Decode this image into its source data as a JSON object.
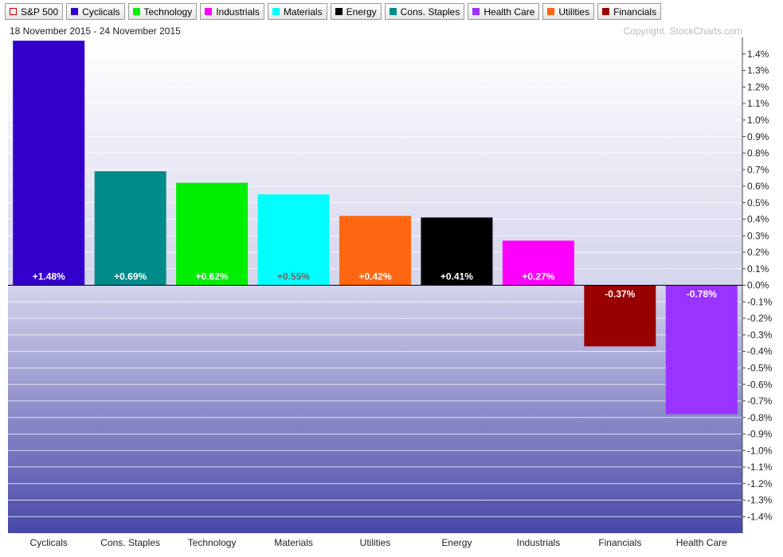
{
  "chart_data": {
    "type": "bar",
    "legend": [
      {
        "name": "S&P 500",
        "color": "#cc0000",
        "hollow": true
      },
      {
        "name": "Cyclicals",
        "color": "#3300cc"
      },
      {
        "name": "Technology",
        "color": "#00ee00"
      },
      {
        "name": "Industrials",
        "color": "#ff00ff"
      },
      {
        "name": "Materials",
        "color": "#00ffff"
      },
      {
        "name": "Energy",
        "color": "#000000"
      },
      {
        "name": "Cons. Staples",
        "color": "#008b8b"
      },
      {
        "name": "Health Care",
        "color": "#9933ff"
      },
      {
        "name": "Utilities",
        "color": "#ff6611"
      },
      {
        "name": "Financials",
        "color": "#990000"
      }
    ],
    "subtitle": "18 November 2015 - 24 November 2015",
    "copyright": "Copyright, StockCharts.com",
    "categories": [
      "Cyclicals",
      "Cons. Staples",
      "Technology",
      "Materials",
      "Utilities",
      "Energy",
      "Industrials",
      "Financials",
      "Health Care"
    ],
    "values": [
      1.48,
      0.69,
      0.62,
      0.55,
      0.42,
      0.41,
      0.27,
      -0.37,
      -0.78
    ],
    "value_labels": [
      "+1.48%",
      "+0.69%",
      "+0.62%",
      "+0.55%",
      "+0.42%",
      "+0.41%",
      "+0.27%",
      "-0.37%",
      "-0.78%"
    ],
    "colors": [
      "#3300cc",
      "#008b8b",
      "#00ee00",
      "#00ffff",
      "#ff6611",
      "#000000",
      "#ff00ff",
      "#990000",
      "#9933ff"
    ],
    "ylim": [
      -1.5,
      1.5
    ],
    "yticks": [
      {
        "value": 1.4,
        "label": "1.4%"
      },
      {
        "value": 1.3,
        "label": "1.3%"
      },
      {
        "value": 1.2,
        "label": "1.2%"
      },
      {
        "value": 1.1,
        "label": "1.1%"
      },
      {
        "value": 1.0,
        "label": "1.0%"
      },
      {
        "value": 0.9,
        "label": "0.9%"
      },
      {
        "value": 0.8,
        "label": "0.8%"
      },
      {
        "value": 0.7,
        "label": "0.7%"
      },
      {
        "value": 0.6,
        "label": "0.6%"
      },
      {
        "value": 0.5,
        "label": "0.5%"
      },
      {
        "value": 0.4,
        "label": "0.4%"
      },
      {
        "value": 0.3,
        "label": "0.3%"
      },
      {
        "value": 0.2,
        "label": "0.2%"
      },
      {
        "value": 0.1,
        "label": "0.1%"
      },
      {
        "value": 0,
        "label": "0.0%"
      },
      {
        "value": -0.1,
        "label": "-0.1%"
      },
      {
        "value": -0.2,
        "label": "-0.2%"
      },
      {
        "value": -0.3,
        "label": "-0.3%"
      },
      {
        "value": -0.4,
        "label": "-0.4%"
      },
      {
        "value": -0.5,
        "label": "-0.5%"
      },
      {
        "value": -0.6,
        "label": "-0.6%"
      },
      {
        "value": -0.7,
        "label": "-0.7%"
      },
      {
        "value": -0.8,
        "label": "-0.8%"
      },
      {
        "value": -0.9,
        "label": "-0.9%"
      },
      {
        "value": -1.0,
        "label": "-1.0%"
      },
      {
        "value": -1.1,
        "label": "-1.1%"
      },
      {
        "value": -1.2,
        "label": "-1.2%"
      },
      {
        "value": -1.3,
        "label": "-1.3%"
      },
      {
        "value": -1.4,
        "label": "-1.4%"
      }
    ],
    "grid": true
  }
}
